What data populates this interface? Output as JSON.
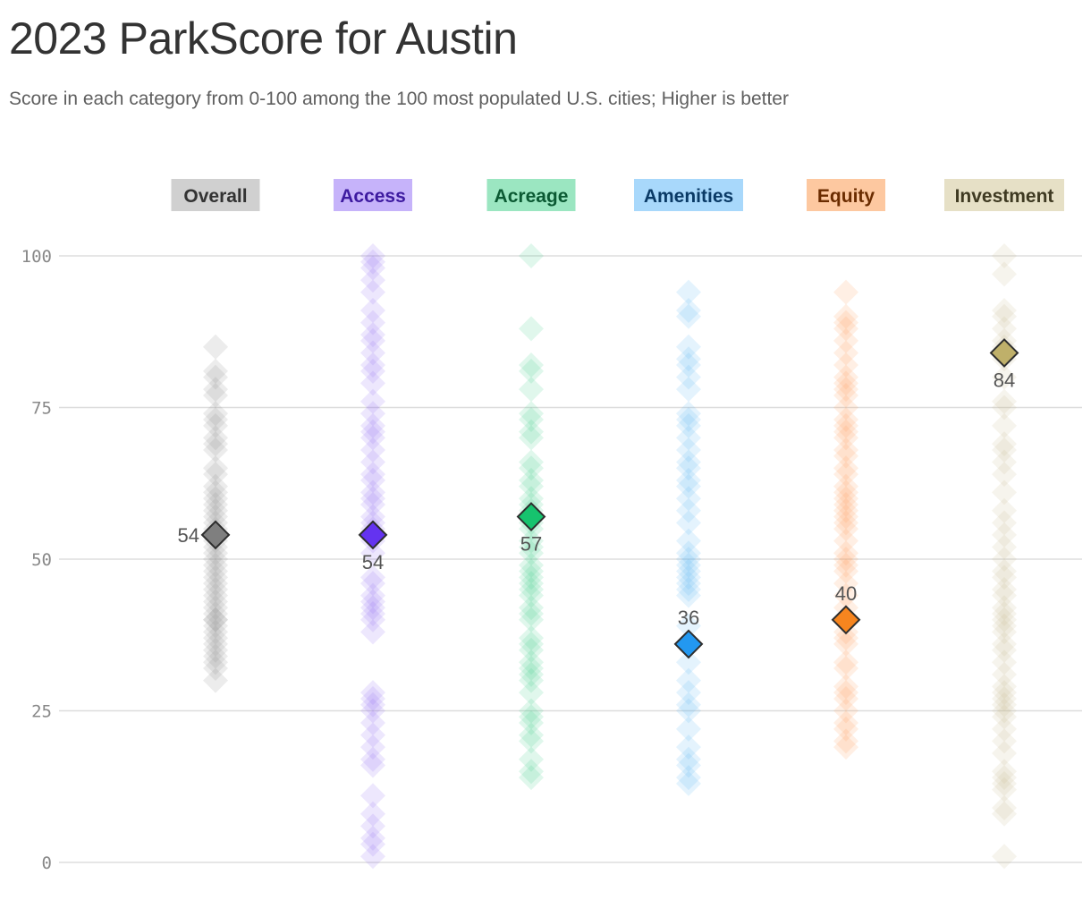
{
  "title": "2023 ParkScore for Austin",
  "subtitle": "Score in each category from 0-100 among the 100 most populated U.S. cities; Higher is better",
  "chart_data": {
    "type": "scatter",
    "ylim": [
      0,
      100
    ],
    "yticks": [
      "0",
      "25",
      "50",
      "75",
      "100"
    ],
    "grid": true,
    "categories": [
      {
        "label": "Overall",
        "label_bg": "#d0d0d0",
        "label_color": "#333333",
        "dot_color": "#8a8a8a",
        "highlight_color": "#7f7f7f",
        "highlight_value": 54,
        "highlight_label": "54",
        "label_side": "left",
        "values": [
          85,
          81,
          80,
          78,
          77,
          74,
          73,
          72,
          70,
          69,
          68,
          65,
          64,
          62,
          61,
          60,
          59,
          58,
          57,
          56,
          55,
          54,
          53,
          52,
          51,
          50,
          49,
          48,
          47,
          46,
          45,
          44,
          43,
          42,
          41,
          40,
          40,
          39,
          38,
          37,
          36,
          35,
          34,
          33,
          32,
          30
        ]
      },
      {
        "label": "Access",
        "label_bg": "#c6b3fa",
        "label_color": "#3d1aa0",
        "dot_color": "#8f6cf0",
        "highlight_color": "#6433f0",
        "highlight_value": 54,
        "highlight_label": "54",
        "label_side": "below",
        "values": [
          100,
          99,
          98,
          96,
          94,
          91,
          89,
          87,
          86,
          84,
          82,
          81,
          79,
          76,
          74,
          72,
          71,
          70,
          68,
          66,
          64,
          63,
          61,
          60,
          59,
          57,
          56,
          55,
          53,
          51,
          47,
          46,
          44,
          43,
          42,
          41,
          40,
          38,
          28,
          27,
          26,
          25,
          23,
          21,
          19,
          17,
          16,
          11,
          8,
          6,
          4,
          3,
          1
        ]
      },
      {
        "label": "Acreage",
        "label_bg": "#9be6c1",
        "label_color": "#0b5a33",
        "dot_color": "#3fcf89",
        "highlight_color": "#16c36e",
        "highlight_value": 57,
        "highlight_label": "57",
        "label_side": "below",
        "values": [
          100,
          88,
          82,
          81,
          78,
          74,
          73,
          71,
          70,
          66,
          65,
          63,
          62,
          60,
          59,
          58,
          56,
          55,
          53,
          52,
          51,
          49,
          48,
          47,
          46,
          45,
          44,
          42,
          41,
          40,
          37,
          36,
          35,
          33,
          32,
          31,
          30,
          28,
          25,
          24,
          23,
          21,
          20,
          17,
          15,
          14
        ]
      },
      {
        "label": "Amenities",
        "label_bg": "#a8d8fb",
        "label_color": "#0a3a66",
        "dot_color": "#55b2f5",
        "highlight_color": "#2398f0",
        "highlight_value": 36,
        "highlight_label": "36",
        "label_side": "above",
        "values": [
          94,
          91,
          90,
          85,
          83,
          82,
          80,
          78,
          74,
          73,
          72,
          70,
          68,
          66,
          65,
          63,
          62,
          60,
          58,
          56,
          53,
          51,
          50,
          49,
          48,
          47,
          46,
          45,
          44,
          39,
          36,
          33,
          30,
          28,
          26,
          25,
          22,
          19,
          17,
          16,
          14,
          13
        ]
      },
      {
        "label": "Equity",
        "label_bg": "#fdc8a0",
        "label_color": "#6b2c00",
        "dot_color": "#fd9a55",
        "highlight_color": "#f6851f",
        "highlight_value": 40,
        "highlight_label": "40",
        "label_side": "above",
        "values": [
          94,
          90,
          89,
          88,
          86,
          84,
          82,
          80,
          79,
          78,
          77,
          75,
          73,
          72,
          71,
          70,
          68,
          67,
          65,
          64,
          62,
          61,
          60,
          59,
          58,
          57,
          56,
          55,
          53,
          51,
          50,
          49,
          48,
          46,
          44,
          42,
          40,
          38,
          37,
          36,
          33,
          32,
          29,
          28,
          27,
          25,
          23,
          22,
          20,
          19
        ]
      },
      {
        "label": "Investment",
        "label_bg": "#e6e0c6",
        "label_color": "#3f3a22",
        "dot_color": "#c8bd8c",
        "highlight_color": "#bfb06a",
        "highlight_value": 84,
        "highlight_label": "84",
        "label_side": "below",
        "values": [
          100,
          97,
          91,
          90,
          88,
          86,
          85,
          83,
          80,
          76,
          75,
          72,
          69,
          68,
          66,
          64,
          61,
          58,
          56,
          54,
          52,
          50,
          48,
          47,
          45,
          44,
          42,
          41,
          40,
          39,
          38,
          36,
          35,
          33,
          31,
          29,
          28,
          27,
          26,
          25,
          24,
          22,
          20,
          18,
          15,
          14,
          13,
          12,
          9,
          8,
          1
        ]
      }
    ]
  }
}
